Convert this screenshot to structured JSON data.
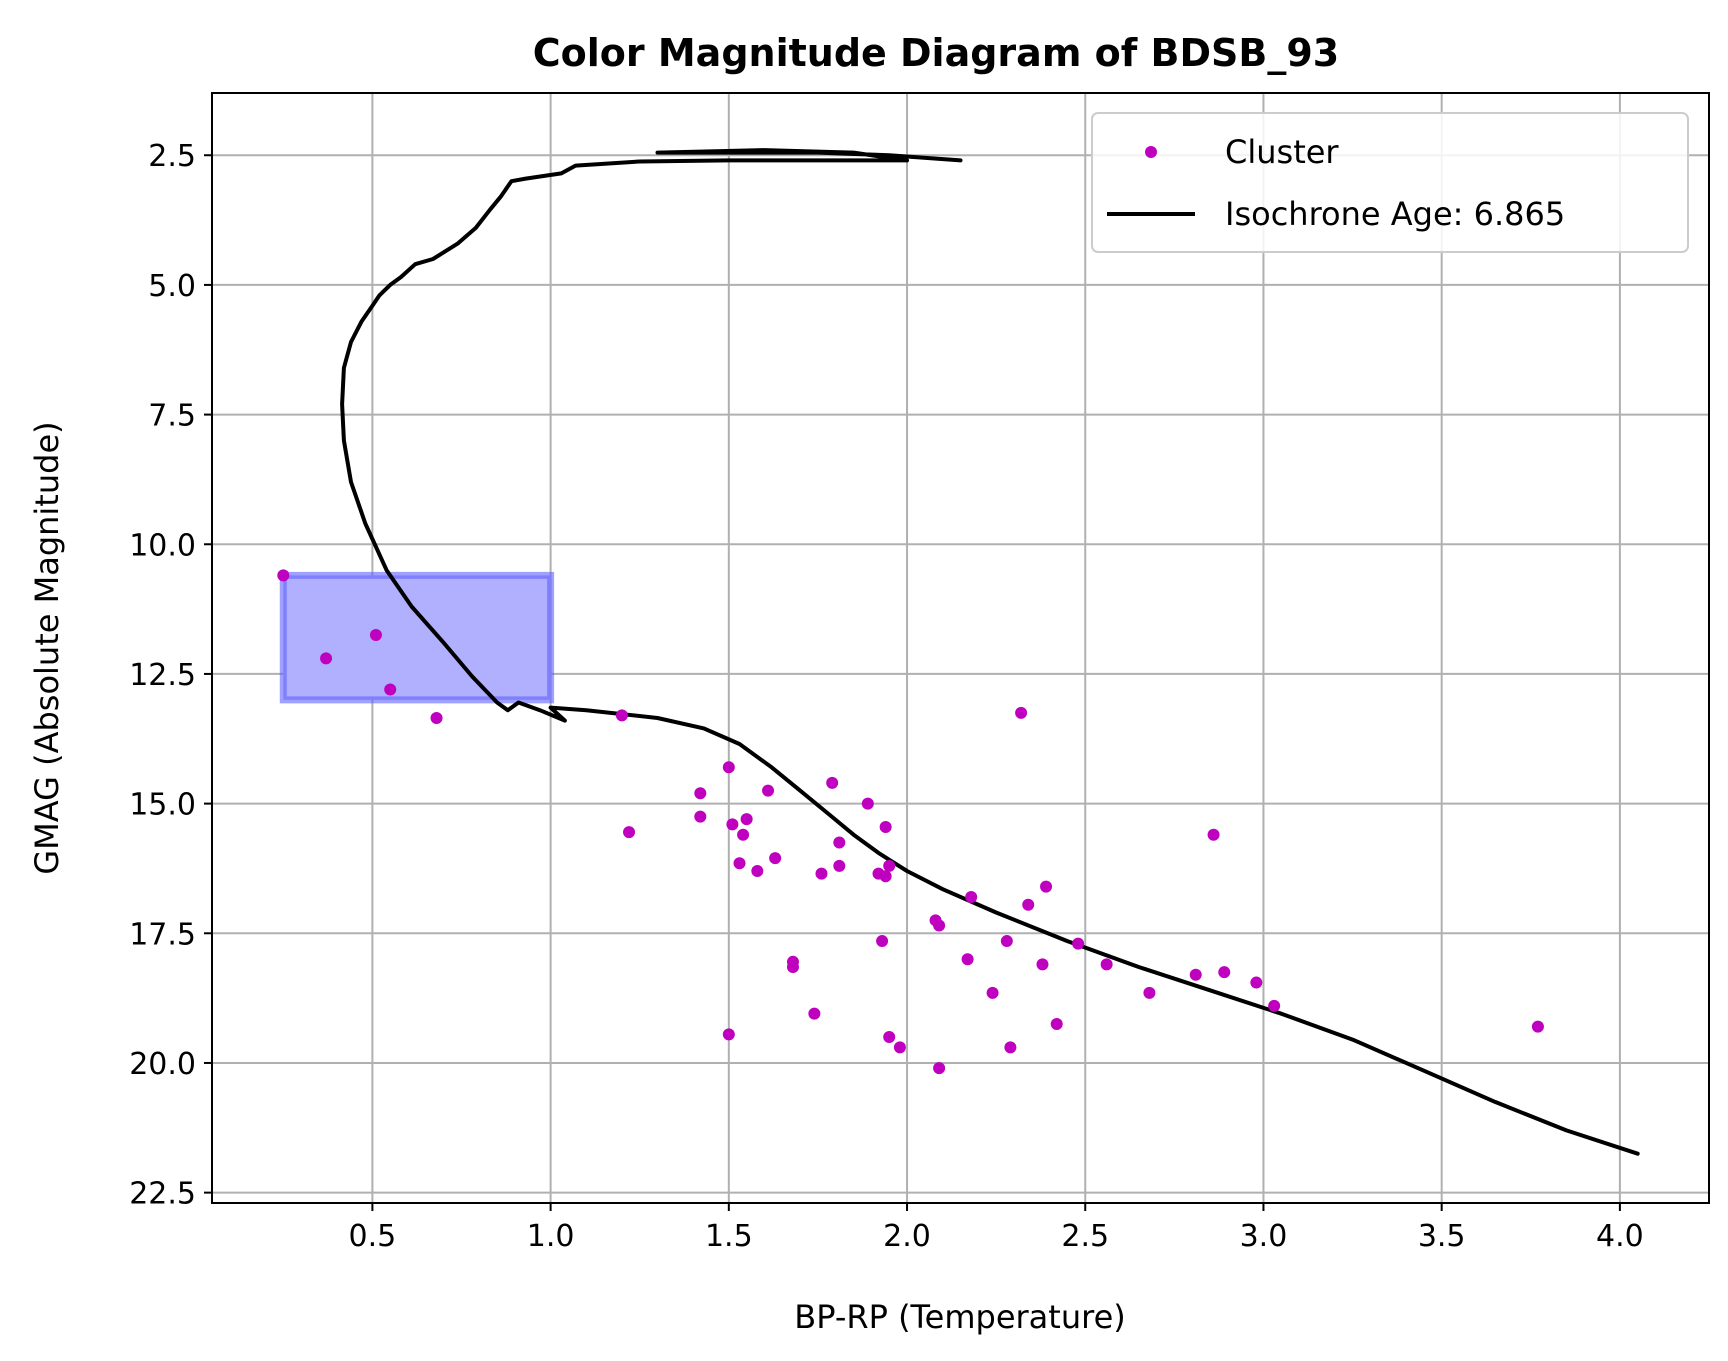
{
  "chart_data": {
    "type": "scatter",
    "title": "Color Magnitude Diagram of BDSB_93",
    "xlabel": "BP-RP (Temperature)",
    "ylabel": "GMAG (Absolute Magnitude)",
    "xlim": [
      0.05,
      4.25
    ],
    "ylim": [
      22.7,
      1.3
    ],
    "y_inverted": true,
    "xticks": [
      0.5,
      1.0,
      1.5,
      2.0,
      2.5,
      3.0,
      3.5,
      4.0
    ],
    "xtick_labels": [
      "0.5",
      "1.0",
      "1.5",
      "2.0",
      "2.5",
      "3.0",
      "3.5",
      "4.0"
    ],
    "yticks": [
      2.5,
      5.0,
      7.5,
      10.0,
      12.5,
      15.0,
      17.5,
      20.0,
      22.5
    ],
    "ytick_labels": [
      "2.5",
      "5.0",
      "7.5",
      "10.0",
      "12.5",
      "15.0",
      "17.5",
      "20.0",
      "22.5"
    ],
    "grid": true,
    "legend_position": "top-right",
    "colors": {
      "cluster": "#bf00bf",
      "isochrone": "#000000",
      "box_fill": "#b0b0ff",
      "box_edge": "#6060ff"
    },
    "series": [
      {
        "name": "Cluster",
        "kind": "scatter",
        "points": [
          [
            0.25,
            10.6
          ],
          [
            0.37,
            12.2
          ],
          [
            0.51,
            11.75
          ],
          [
            0.55,
            12.8
          ],
          [
            0.68,
            13.35
          ],
          [
            1.2,
            13.3
          ],
          [
            1.22,
            15.55
          ],
          [
            1.42,
            14.8
          ],
          [
            1.42,
            15.25
          ],
          [
            1.5,
            14.3
          ],
          [
            1.51,
            15.4
          ],
          [
            1.53,
            16.15
          ],
          [
            1.54,
            15.6
          ],
          [
            1.55,
            15.3
          ],
          [
            1.58,
            16.3
          ],
          [
            1.61,
            14.75
          ],
          [
            1.63,
            16.05
          ],
          [
            1.5,
            19.45
          ],
          [
            1.68,
            18.05
          ],
          [
            1.68,
            18.15
          ],
          [
            1.74,
            19.05
          ],
          [
            1.76,
            16.35
          ],
          [
            1.79,
            14.6
          ],
          [
            1.81,
            15.75
          ],
          [
            1.81,
            16.2
          ],
          [
            1.89,
            15.0
          ],
          [
            1.92,
            16.35
          ],
          [
            1.93,
            17.65
          ],
          [
            1.94,
            15.45
          ],
          [
            1.94,
            16.4
          ],
          [
            1.95,
            16.2
          ],
          [
            1.95,
            19.5
          ],
          [
            1.98,
            19.7
          ],
          [
            2.08,
            17.25
          ],
          [
            2.09,
            17.35
          ],
          [
            2.09,
            20.1
          ],
          [
            2.17,
            18.0
          ],
          [
            2.18,
            16.8
          ],
          [
            2.24,
            18.65
          ],
          [
            2.28,
            17.65
          ],
          [
            2.29,
            19.7
          ],
          [
            2.32,
            13.25
          ],
          [
            2.34,
            16.95
          ],
          [
            2.38,
            18.1
          ],
          [
            2.39,
            16.6
          ],
          [
            2.42,
            19.25
          ],
          [
            2.48,
            17.7
          ],
          [
            2.56,
            18.1
          ],
          [
            2.68,
            18.65
          ],
          [
            2.81,
            18.3
          ],
          [
            2.86,
            15.6
          ],
          [
            2.89,
            18.25
          ],
          [
            2.98,
            18.45
          ],
          [
            3.03,
            18.9
          ],
          [
            3.77,
            19.3
          ]
        ]
      },
      {
        "name": "Isochrone Age: 6.865",
        "kind": "line",
        "points": [
          [
            2.15,
            2.6
          ],
          [
            1.95,
            2.5
          ],
          [
            1.75,
            2.45
          ],
          [
            1.55,
            2.45
          ],
          [
            1.3,
            2.45
          ],
          [
            1.6,
            2.4
          ],
          [
            1.85,
            2.45
          ],
          [
            2.0,
            2.6
          ],
          [
            1.75,
            2.6
          ],
          [
            1.5,
            2.6
          ],
          [
            1.25,
            2.62
          ],
          [
            1.07,
            2.7
          ],
          [
            1.03,
            2.85
          ],
          [
            0.98,
            2.9
          ],
          [
            0.93,
            2.95
          ],
          [
            0.89,
            3.0
          ],
          [
            0.86,
            3.3
          ],
          [
            0.83,
            3.55
          ],
          [
            0.79,
            3.9
          ],
          [
            0.74,
            4.2
          ],
          [
            0.67,
            4.5
          ],
          [
            0.62,
            4.6
          ],
          [
            0.58,
            4.85
          ],
          [
            0.55,
            5.0
          ],
          [
            0.52,
            5.2
          ],
          [
            0.5,
            5.4
          ],
          [
            0.47,
            5.7
          ],
          [
            0.44,
            6.1
          ],
          [
            0.42,
            6.6
          ],
          [
            0.415,
            7.3
          ],
          [
            0.42,
            8.0
          ],
          [
            0.44,
            8.8
          ],
          [
            0.48,
            9.6
          ],
          [
            0.54,
            10.5
          ],
          [
            0.61,
            11.2
          ],
          [
            0.7,
            11.9
          ],
          [
            0.78,
            12.55
          ],
          [
            0.85,
            13.05
          ],
          [
            0.88,
            13.2
          ],
          [
            0.91,
            13.05
          ],
          [
            0.97,
            13.2
          ],
          [
            1.04,
            13.4
          ],
          [
            1.0,
            13.15
          ],
          [
            1.1,
            13.2
          ],
          [
            1.3,
            13.35
          ],
          [
            1.43,
            13.55
          ],
          [
            1.53,
            13.85
          ],
          [
            1.62,
            14.3
          ],
          [
            1.7,
            14.75
          ],
          [
            1.78,
            15.2
          ],
          [
            1.85,
            15.6
          ],
          [
            1.92,
            15.95
          ],
          [
            2.0,
            16.3
          ],
          [
            2.1,
            16.65
          ],
          [
            2.25,
            17.1
          ],
          [
            2.45,
            17.65
          ],
          [
            2.65,
            18.15
          ],
          [
            2.85,
            18.6
          ],
          [
            3.05,
            19.05
          ],
          [
            3.25,
            19.55
          ],
          [
            3.45,
            20.15
          ],
          [
            3.65,
            20.75
          ],
          [
            3.85,
            21.3
          ],
          [
            4.05,
            21.75
          ]
        ]
      }
    ],
    "highlight_box": {
      "x0": 0.25,
      "x1": 1.0,
      "y0": 10.6,
      "y1": 13.0
    },
    "legend": [
      {
        "label": "Cluster",
        "marker": "dot"
      },
      {
        "label": "Isochrone Age: 6.865",
        "marker": "line"
      }
    ]
  }
}
